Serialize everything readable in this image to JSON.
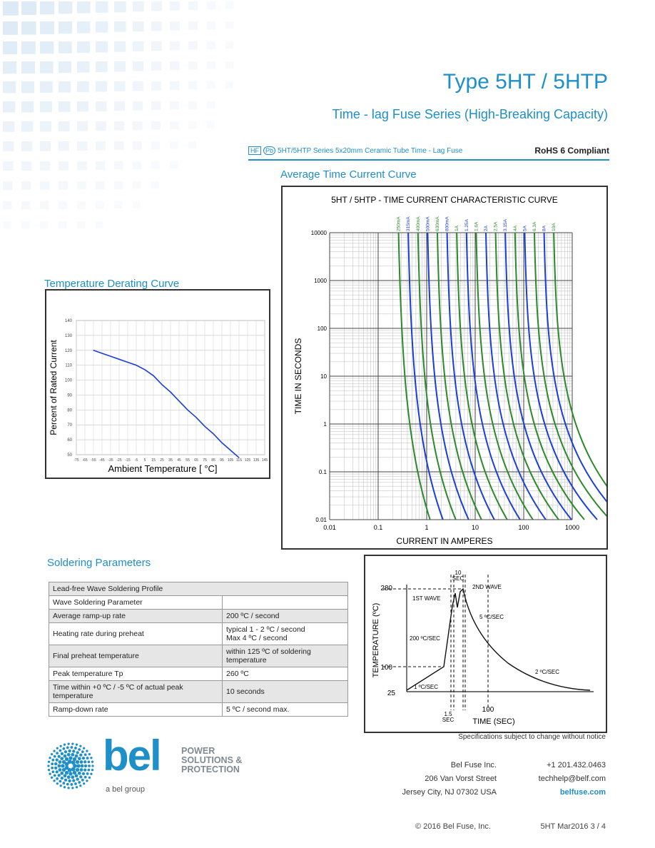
{
  "header": {
    "title": "Type 5HT / 5HTP",
    "subtitle": "Time - lag Fuse Series (High-Breaking Capacity)",
    "hf_badge": "HF",
    "pb_badge": "Pb",
    "series_text": "5HT/5HTP Series 5x20mm Ceramic Tube Time - Lag Fuse",
    "rohs": "RoHS 6 Compliant"
  },
  "sections": {
    "avg_curve": "Average Time Current Curve",
    "derating": "Temperature Derating Curve",
    "soldering": "Soldering Parameters"
  },
  "tcc_chart": {
    "title": "5HT / 5HTP - TIME CURRENT CHARACTERISTIC CURVE",
    "xlabel": "CURRENT IN AMPERES",
    "ylabel": "TIME IN SECONDS",
    "x_ticks": [
      "0.01",
      "0.1",
      "1",
      "10",
      "100",
      "1000"
    ],
    "y_ticks": [
      "10000",
      "1000",
      "100",
      "10",
      "1",
      "0.1",
      "0.01"
    ],
    "ratings": [
      "250mA",
      "315mA",
      "400mA",
      "500mA",
      "630mA",
      "800mA",
      "1A",
      "1.25A",
      "1.6A",
      "2A",
      "2.5A",
      "3.15A",
      "4A",
      "5A",
      "6.3A",
      "8A",
      "10A"
    ],
    "colors": {
      "odd": "#2a8a2a",
      "even": "#1a3fd8"
    }
  },
  "chart_data": {
    "type": "line",
    "title": "",
    "xlabel": "Ambient Temperature [ °C]",
    "ylabel": "Percent of Rated Current",
    "x_ticks": [
      "-75",
      "-65",
      "-55",
      "-45",
      "-35",
      "-25",
      "-15",
      "-5",
      "5",
      "15",
      "25",
      "35",
      "45",
      "55",
      "65",
      "75",
      "85",
      "95",
      "105",
      "115",
      "125",
      "135",
      "145"
    ],
    "y_ticks": [
      "50",
      "60",
      "70",
      "80",
      "90",
      "100",
      "110",
      "120",
      "130",
      "140"
    ],
    "xlim": [
      -75,
      145
    ],
    "ylim": [
      50,
      140
    ],
    "grid": true,
    "series": [
      {
        "color": "#1a3fd8",
        "x": [
          -55,
          -45,
          -35,
          -25,
          -15,
          -5,
          5,
          15,
          25,
          35,
          45,
          55,
          65,
          75,
          85,
          95,
          105,
          115
        ],
        "y": [
          120,
          118,
          116,
          114,
          112,
          110,
          107,
          103,
          97,
          92,
          86,
          80,
          75,
          69,
          64,
          58,
          53,
          48
        ]
      }
    ]
  },
  "soldering_table": {
    "rows": [
      {
        "label": "Lead-free Wave Soldering Profile",
        "value": "",
        "span": true,
        "shade": true
      },
      {
        "label": "Wave Soldering Parameter",
        "value": "",
        "shade": false
      },
      {
        "label": "Average ramp-up rate",
        "value": "200 ºC / second",
        "shade": true
      },
      {
        "label": "Heating rate during preheat",
        "value": "typical 1 - 2 ºC / second\nMax 4 ºC / second",
        "shade": false
      },
      {
        "label": "Final preheat temperature",
        "value": "within 125 ºC of soldering temperature",
        "shade": true
      },
      {
        "label": "Peak temperature Tp",
        "value": "260 ºC",
        "shade": false
      },
      {
        "label": "Time within +0 ºC / -5 ºC of actual peak temperature",
        "value": "10 seconds",
        "shade": true
      },
      {
        "label": "Ramp-down rate",
        "value": "5 ºC / second max.",
        "shade": false
      }
    ]
  },
  "wave_chart": {
    "ylabel": "TEMPERATURE (ºC)",
    "xlabel": "TIME (SEC)",
    "y280": "280",
    "y100": "100",
    "y25": "25",
    "x100": "100",
    "ten": "10",
    "sec": "SEC",
    "one_five": "1.5",
    "first_wave": "1ST WAVE",
    "second_wave": "2ND WAVE",
    "r200": "200 ºC/SEC",
    "r5": "5 ºC/SEC",
    "r2": "2 ºC/SEC",
    "r1": "1 ºC/SEC"
  },
  "notice": "Specifications subject to change without notice",
  "footer": {
    "logo_word": "bel",
    "logo_tag1": "POWER",
    "logo_tag2": "SOLUTIONS &",
    "logo_tag3": "PROTECTION",
    "logo_group": "a bel group",
    "company": "Bel Fuse Inc.",
    "street": "206 Van Vorst Street",
    "city": "Jersey City, NJ 07302 USA",
    "phone": "+1 201.432.0463",
    "email": "techhelp@belf.com",
    "web": "belfuse.com",
    "copyright": "© 2016 Bel Fuse, Inc.",
    "docref": "5HT Mar2016 3 / 4"
  }
}
